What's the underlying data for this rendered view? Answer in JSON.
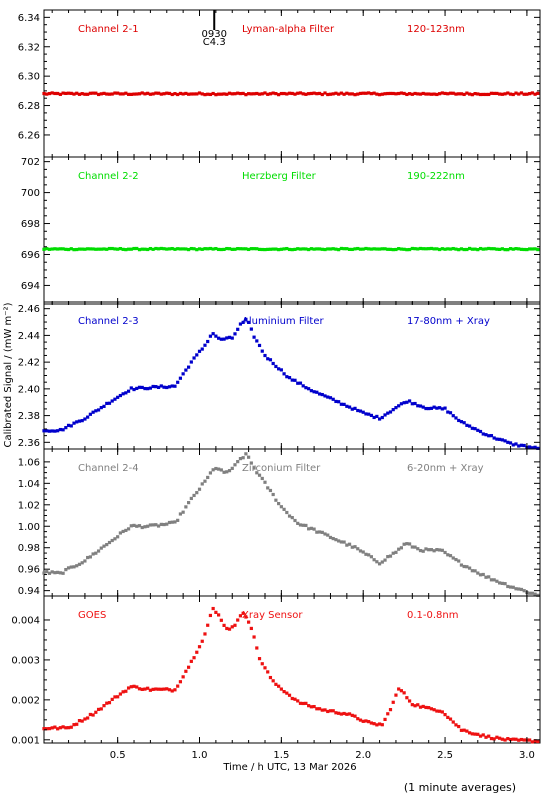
{
  "chart_data": {
    "type": "scatter",
    "xlabel": "Time / h UTC, 13 Mar 2026",
    "ylabel": "Calibrated Signal / (mW m⁻²)",
    "xlim": [
      0.05,
      3.08
    ],
    "xticks": [
      "0.5",
      "1.0",
      "1.5",
      "2.0",
      "2.5",
      "3.0"
    ],
    "xtick_values": [
      0.5,
      1.0,
      1.5,
      2.0,
      2.5,
      3.0
    ],
    "footnote": "(1 minute averages)",
    "marker": {
      "label_top": "0930",
      "label_bottom": "C4.3",
      "x": 1.09
    },
    "panels": [
      {
        "channel": "Channel 2-1",
        "filter": "Lyman-alpha Filter",
        "band": "120-123nm",
        "color": "#dd0000",
        "ylim": [
          6.245,
          6.345
        ],
        "yticks": [
          "6.26",
          "6.28",
          "6.30",
          "6.32",
          "6.34"
        ],
        "ytick_values": [
          6.26,
          6.28,
          6.3,
          6.32,
          6.34
        ],
        "curve": [
          [
            0.05,
            6.288
          ],
          [
            3.08,
            6.288
          ]
        ],
        "noise": 0.0006
      },
      {
        "channel": "Channel 2-2",
        "filter": "Herzberg Filter",
        "band": "190-222nm",
        "color": "#00dd00",
        "ylim": [
          692.8,
          702.3
        ],
        "yticks": [
          "694",
          "696",
          "698",
          "700",
          "702"
        ],
        "ytick_values": [
          694,
          696,
          698,
          700,
          702
        ],
        "curve": [
          [
            0.05,
            696.35
          ],
          [
            3.08,
            696.35
          ]
        ],
        "noise": 0.04
      },
      {
        "channel": "Channel 2-3",
        "filter": "Aluminium Filter",
        "band": "17-80nm + Xray",
        "color": "#0000cc",
        "ylim": [
          2.355,
          2.465
        ],
        "yticks": [
          "2.36",
          "2.38",
          "2.40",
          "2.42",
          "2.44",
          "2.46"
        ],
        "ytick_values": [
          2.36,
          2.38,
          2.4,
          2.42,
          2.44,
          2.46
        ],
        "curve": [
          [
            0.05,
            2.369
          ],
          [
            0.15,
            2.369
          ],
          [
            0.3,
            2.378
          ],
          [
            0.45,
            2.39
          ],
          [
            0.58,
            2.4
          ],
          [
            0.7,
            2.401
          ],
          [
            0.85,
            2.402
          ],
          [
            0.95,
            2.42
          ],
          [
            1.03,
            2.432
          ],
          [
            1.08,
            2.442
          ],
          [
            1.12,
            2.437
          ],
          [
            1.2,
            2.438
          ],
          [
            1.25,
            2.448
          ],
          [
            1.29,
            2.452
          ],
          [
            1.33,
            2.44
          ],
          [
            1.4,
            2.425
          ],
          [
            1.55,
            2.408
          ],
          [
            1.7,
            2.398
          ],
          [
            1.85,
            2.39
          ],
          [
            2.0,
            2.382
          ],
          [
            2.1,
            2.378
          ],
          [
            2.2,
            2.386
          ],
          [
            2.27,
            2.391
          ],
          [
            2.38,
            2.386
          ],
          [
            2.5,
            2.385
          ],
          [
            2.6,
            2.375
          ],
          [
            2.75,
            2.366
          ],
          [
            2.9,
            2.359
          ],
          [
            3.08,
            2.355
          ]
        ],
        "noise": 0.0008
      },
      {
        "channel": "Channel 2-4",
        "filter": "Zirconium Filter",
        "band": "6-20nm + Xray",
        "color": "#808080",
        "ylim": [
          0.935,
          1.072
        ],
        "yticks": [
          "0.94",
          "0.96",
          "0.98",
          "1.00",
          "1.02",
          "1.04",
          "1.06"
        ],
        "ytick_values": [
          0.94,
          0.96,
          0.98,
          1.0,
          1.02,
          1.04,
          1.06
        ],
        "curve": [
          [
            0.05,
            0.957
          ],
          [
            0.15,
            0.956
          ],
          [
            0.3,
            0.968
          ],
          [
            0.45,
            0.985
          ],
          [
            0.58,
            1.0
          ],
          [
            0.7,
            1.0
          ],
          [
            0.85,
            1.003
          ],
          [
            0.95,
            1.025
          ],
          [
            1.05,
            1.045
          ],
          [
            1.09,
            1.055
          ],
          [
            1.15,
            1.05
          ],
          [
            1.2,
            1.053
          ],
          [
            1.25,
            1.063
          ],
          [
            1.29,
            1.067
          ],
          [
            1.33,
            1.055
          ],
          [
            1.4,
            1.04
          ],
          [
            1.5,
            1.018
          ],
          [
            1.6,
            1.003
          ],
          [
            1.8,
            0.99
          ],
          [
            1.95,
            0.98
          ],
          [
            2.1,
            0.966
          ],
          [
            2.2,
            0.976
          ],
          [
            2.26,
            0.984
          ],
          [
            2.35,
            0.978
          ],
          [
            2.48,
            0.977
          ],
          [
            2.6,
            0.965
          ],
          [
            2.75,
            0.953
          ],
          [
            2.9,
            0.944
          ],
          [
            3.08,
            0.935
          ]
        ],
        "noise": 0.0012
      },
      {
        "channel": "GOES",
        "filter": "Xray Sensor",
        "band": "0.1-0.8nm",
        "color": "#ee1111",
        "ylim": [
          0.00092,
          0.0046
        ],
        "yticks": [
          "0.001",
          "0.002",
          "0.003",
          "0.004"
        ],
        "ytick_values": [
          0.001,
          0.002,
          0.003,
          0.004
        ],
        "curve": [
          [
            0.05,
            0.00129
          ],
          [
            0.2,
            0.0013
          ],
          [
            0.35,
            0.00165
          ],
          [
            0.5,
            0.0021
          ],
          [
            0.58,
            0.00233
          ],
          [
            0.7,
            0.00226
          ],
          [
            0.85,
            0.00225
          ],
          [
            0.95,
            0.00295
          ],
          [
            1.03,
            0.0036
          ],
          [
            1.08,
            0.00428
          ],
          [
            1.12,
            0.0041
          ],
          [
            1.17,
            0.00375
          ],
          [
            1.22,
            0.0039
          ],
          [
            1.27,
            0.0042
          ],
          [
            1.31,
            0.0039
          ],
          [
            1.37,
            0.003
          ],
          [
            1.45,
            0.00245
          ],
          [
            1.6,
            0.00195
          ],
          [
            1.75,
            0.00175
          ],
          [
            1.9,
            0.00165
          ],
          [
            2.05,
            0.0014
          ],
          [
            2.12,
            0.00138
          ],
          [
            2.18,
            0.0019
          ],
          [
            2.22,
            0.0023
          ],
          [
            2.3,
            0.0019
          ],
          [
            2.4,
            0.00178
          ],
          [
            2.48,
            0.00173
          ],
          [
            2.6,
            0.00125
          ],
          [
            2.75,
            0.00108
          ],
          [
            2.9,
            0.00099
          ],
          [
            3.08,
            0.00097
          ]
        ],
        "noise": 3e-05
      }
    ]
  }
}
